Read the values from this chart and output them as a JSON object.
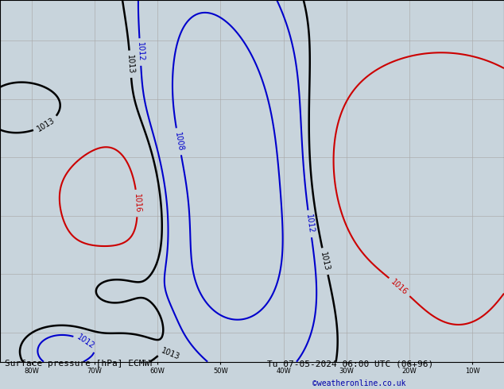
{
  "title_bottom_left": "Surface pressure [hPa] ECMWF",
  "title_bottom_right": "Tu 07-05-2024 06:00 UTC (06+96)",
  "copyright": "©weatheronline.co.uk",
  "background_ocean": "#c8d4dc",
  "land_color": "#b8d4a0",
  "land_edge": "#888888",
  "grid_color": "#aaaaaa",
  "grid_lons": [
    -80,
    -70,
    -60,
    -50,
    -40,
    -30,
    -20,
    -10
  ],
  "grid_lats": [
    10,
    20,
    30,
    40,
    50,
    60
  ],
  "extent": [
    -85,
    -5,
    5,
    67
  ],
  "blue_levels": [
    1008,
    1012
  ],
  "black_levels": [
    1013
  ],
  "red_levels": [
    1016
  ],
  "blue_color": "#0000cc",
  "black_color": "#000000",
  "red_color": "#cc0000",
  "lw_main": 1.5,
  "label_fontsize": 7
}
